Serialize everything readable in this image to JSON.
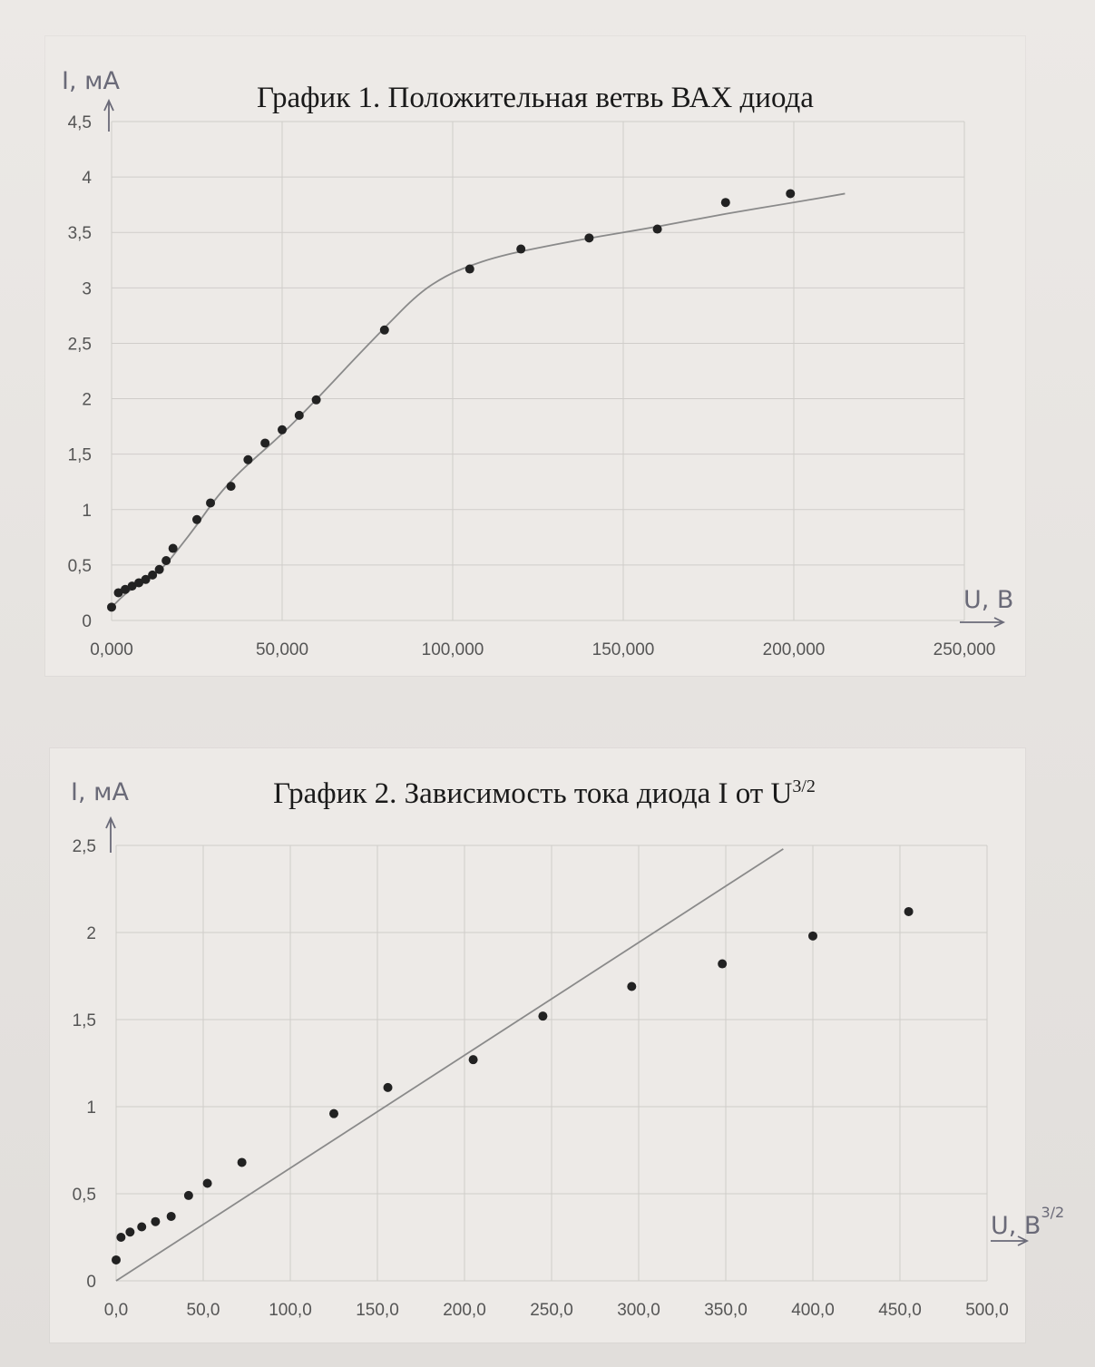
{
  "chart_data": [
    {
      "type": "scatter",
      "title": "График 1. Положительная ветвь ВАХ диода",
      "ylabel": "I, мА",
      "xlabel": "U, В",
      "xlim": [
        0,
        250
      ],
      "ylim": [
        0,
        4.5
      ],
      "x_ticks": [
        "0,000",
        "50,000",
        "100,000",
        "150,000",
        "200,000",
        "250,000"
      ],
      "y_ticks": [
        "0",
        "0,5",
        "1",
        "1,5",
        "2",
        "2,5",
        "3",
        "3,5",
        "4",
        "4,5"
      ],
      "grid": true,
      "series": [
        {
          "points": [
            [
              0,
              0.12
            ],
            [
              2,
              0.25
            ],
            [
              4,
              0.28
            ],
            [
              6,
              0.31
            ],
            [
              8,
              0.34
            ],
            [
              10,
              0.37
            ],
            [
              12,
              0.41
            ],
            [
              14,
              0.46
            ],
            [
              16,
              0.54
            ],
            [
              18,
              0.65
            ],
            [
              25,
              0.91
            ],
            [
              29,
              1.06
            ],
            [
              35,
              1.21
            ],
            [
              40,
              1.45
            ],
            [
              45,
              1.6
            ],
            [
              50,
              1.72
            ],
            [
              55,
              1.85
            ],
            [
              60,
              1.99
            ],
            [
              80,
              2.62
            ],
            [
              105,
              3.17
            ],
            [
              120,
              3.35
            ],
            [
              140,
              3.45
            ],
            [
              160,
              3.53
            ],
            [
              180,
              3.77
            ],
            [
              199,
              3.85
            ]
          ]
        }
      ],
      "trend_curve": [
        [
          0,
          0.12
        ],
        [
          5,
          0.27
        ],
        [
          10,
          0.36
        ],
        [
          15,
          0.47
        ],
        [
          20,
          0.66
        ],
        [
          25,
          0.86
        ],
        [
          30,
          1.08
        ],
        [
          35,
          1.26
        ],
        [
          40,
          1.41
        ],
        [
          50,
          1.68
        ],
        [
          60,
          1.99
        ],
        [
          70,
          2.32
        ],
        [
          80,
          2.64
        ],
        [
          90,
          2.95
        ],
        [
          98,
          3.11
        ],
        [
          105,
          3.2
        ],
        [
          112,
          3.27
        ],
        [
          120,
          3.33
        ],
        [
          140,
          3.45
        ],
        [
          160,
          3.55
        ],
        [
          180,
          3.67
        ],
        [
          200,
          3.77
        ],
        [
          215,
          3.85
        ]
      ]
    },
    {
      "type": "scatter",
      "title": "График 2. Зависимость тока диода I от U",
      "title_sup": "3/2",
      "ylabel": "I, мА",
      "xlabel": "U, В",
      "xlabel_sup": "3/2",
      "xlim": [
        0,
        500
      ],
      "ylim": [
        0,
        2.5
      ],
      "x_ticks": [
        "0,0",
        "50,0",
        "100,0",
        "150,0",
        "200,0",
        "250,0",
        "300,0",
        "350,0",
        "400,0",
        "450,0",
        "500,0"
      ],
      "y_ticks": [
        "0",
        "0,5",
        "1",
        "1,5",
        "2",
        "2,5"
      ],
      "grid": true,
      "series": [
        {
          "points": [
            [
              0,
              0.12
            ],
            [
              2.8,
              0.25
            ],
            [
              8,
              0.28
            ],
            [
              14.7,
              0.31
            ],
            [
              22.6,
              0.34
            ],
            [
              31.6,
              0.37
            ],
            [
              41.6,
              0.49
            ],
            [
              52.4,
              0.56
            ],
            [
              72.2,
              0.68
            ],
            [
              125,
              0.96
            ],
            [
              156,
              1.11
            ],
            [
              205,
              1.27
            ],
            [
              245,
              1.52
            ],
            [
              296,
              1.69
            ],
            [
              348,
              1.82
            ],
            [
              400,
              1.98
            ],
            [
              455,
              2.12
            ]
          ]
        }
      ],
      "trend_line": [
        [
          0,
          0
        ],
        [
          383,
          2.48
        ]
      ]
    }
  ]
}
